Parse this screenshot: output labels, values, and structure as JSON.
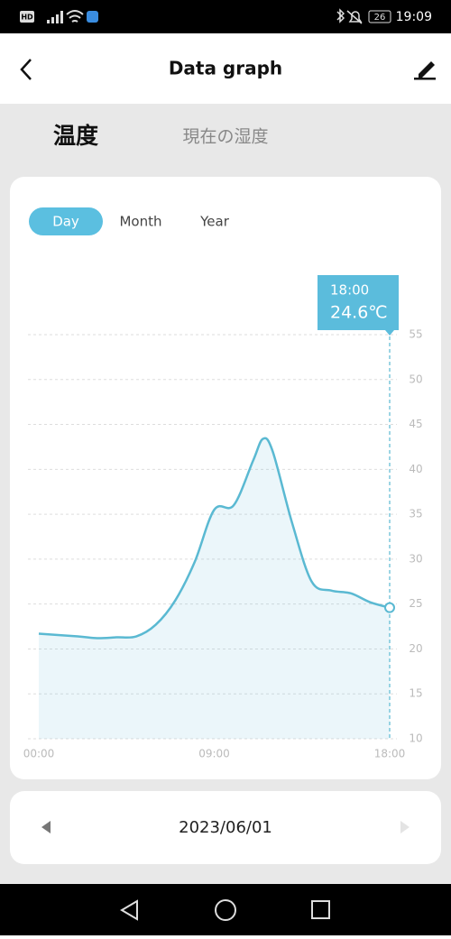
{
  "status_bar": {
    "network": "HD",
    "battery": "26",
    "time": "19:09"
  },
  "header": {
    "title": "Data graph"
  },
  "tabs": [
    "温度",
    "現在の湿度"
  ],
  "ranges": [
    "Day",
    "Month",
    "Year"
  ],
  "chart_data": {
    "type": "line",
    "x": [
      0,
      2,
      3,
      4,
      5,
      6,
      7,
      8,
      9,
      10,
      11,
      11.5,
      12,
      13,
      14,
      15,
      16,
      17,
      18
    ],
    "series": [
      {
        "color": "#5ab9d2",
        "values": [
          21.7,
          21.4,
          21.2,
          21.3,
          21.4,
          22.7,
          25.4,
          29.7,
          35.5,
          36.0,
          41.0,
          43.4,
          42.0,
          34.0,
          27.5,
          26.5,
          26.2,
          25.2,
          24.6
        ]
      }
    ],
    "xlim": [
      0,
      18
    ],
    "xticks": [
      {
        "value": 0,
        "label": "00:00"
      },
      {
        "value": 9,
        "label": "09:00"
      },
      {
        "value": 18,
        "label": "18:00"
      }
    ],
    "ylim": [
      10,
      55
    ],
    "yticks": [
      10,
      15,
      20,
      25,
      30,
      35,
      40,
      45,
      50,
      55
    ],
    "grid": true,
    "tooltip": {
      "title": "18:00",
      "text": "24.6℃"
    }
  },
  "date_nav": {
    "date": "2023/06/01"
  }
}
